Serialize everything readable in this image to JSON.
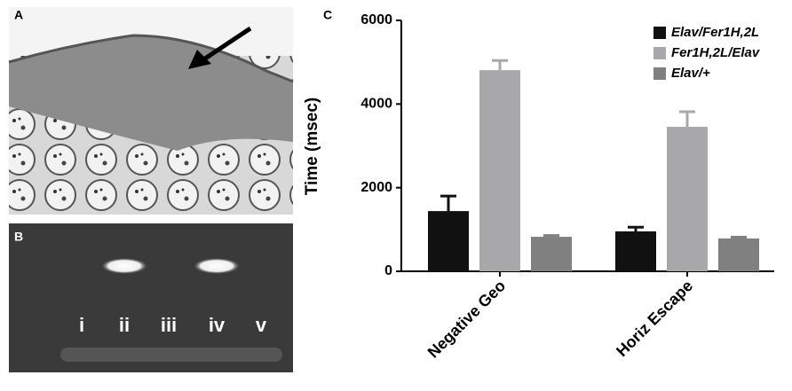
{
  "panels": {
    "a": "A",
    "b": "B",
    "c": "C"
  },
  "gel_lanes": [
    "i",
    "ii",
    "iii",
    "iv",
    "v"
  ],
  "chart_data": {
    "type": "bar",
    "ylabel": "Time (msec)",
    "categories": [
      "Negative Geo",
      "Horiz Escape"
    ],
    "series": [
      {
        "name": "Elav/Fer1H,2L",
        "color": "#111111",
        "values": [
          1440,
          955
        ],
        "errors": [
          360,
          100
        ]
      },
      {
        "name": "Fer1H,2L/Elav",
        "color": "#a8a8aa",
        "values": [
          4810,
          3455
        ],
        "errors": [
          230,
          360
        ]
      },
      {
        "name": "Elav/+",
        "color": "#808080",
        "values": [
          825,
          785
        ],
        "errors": [
          30,
          30
        ]
      }
    ],
    "ylim": [
      0,
      6000
    ],
    "yticks": [
      0,
      2000,
      4000,
      6000
    ]
  }
}
